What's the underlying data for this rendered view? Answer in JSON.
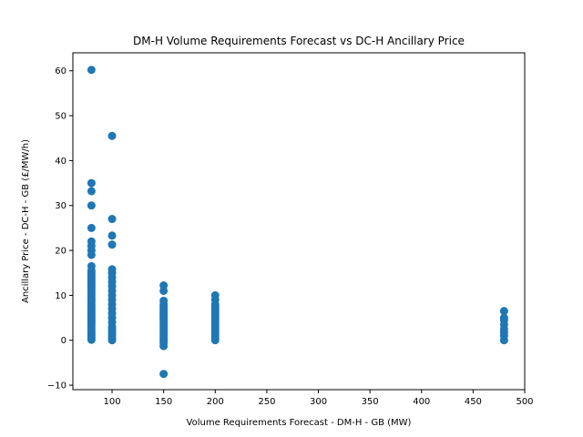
{
  "chart_data": {
    "type": "scatter",
    "title": "DM-H Volume Requirements Forecast vs DC-H Ancillary Price",
    "xlabel": "Volume Requirements Forecast - DM-H - GB (MW)",
    "ylabel": "Ancillary Price - DC-H - GB (£/MW/h)",
    "xlim": [
      62,
      500
    ],
    "ylim": [
      -11,
      64
    ],
    "xticks": [
      100,
      150,
      200,
      250,
      300,
      350,
      400,
      450,
      500
    ],
    "yticks": [
      -10,
      0,
      10,
      20,
      30,
      40,
      50,
      60
    ],
    "grid": false,
    "marker_color": "#1f77b4",
    "series": [
      {
        "points": [
          [
            80,
            60.2
          ],
          [
            80,
            35
          ],
          [
            80,
            33.2
          ],
          [
            80,
            30
          ],
          [
            80,
            25
          ],
          [
            80,
            22
          ],
          [
            80,
            21
          ],
          [
            80,
            20
          ],
          [
            80,
            19
          ],
          [
            80,
            16.5
          ],
          [
            80,
            15.5
          ],
          [
            80,
            15
          ],
          [
            80,
            14.5
          ],
          [
            80,
            14
          ],
          [
            80,
            13.5
          ],
          [
            80,
            13
          ],
          [
            80,
            12.5
          ],
          [
            80,
            12
          ],
          [
            80,
            11.5
          ],
          [
            80,
            11
          ],
          [
            80,
            10.5
          ],
          [
            80,
            10
          ],
          [
            80,
            9.5
          ],
          [
            80,
            9
          ],
          [
            80,
            8.5
          ],
          [
            80,
            8
          ],
          [
            80,
            7.5
          ],
          [
            80,
            7
          ],
          [
            80,
            6.5
          ],
          [
            80,
            6
          ],
          [
            80,
            5.5
          ],
          [
            80,
            5
          ],
          [
            80,
            4.5
          ],
          [
            80,
            4
          ],
          [
            80,
            3.5
          ],
          [
            80,
            3
          ],
          [
            80,
            2.5
          ],
          [
            80,
            2
          ],
          [
            80,
            1.5
          ],
          [
            80,
            1
          ],
          [
            80,
            0.5
          ],
          [
            80,
            0.1
          ],
          [
            100,
            45.5
          ],
          [
            100,
            27
          ],
          [
            100,
            23.3
          ],
          [
            100,
            21.3
          ],
          [
            100,
            15.8
          ],
          [
            100,
            15
          ],
          [
            100,
            14
          ],
          [
            100,
            13
          ],
          [
            100,
            12
          ],
          [
            100,
            11
          ],
          [
            100,
            10
          ],
          [
            100,
            9
          ],
          [
            100,
            8
          ],
          [
            100,
            7
          ],
          [
            100,
            6
          ],
          [
            100,
            5
          ],
          [
            100,
            4
          ],
          [
            100,
            3
          ],
          [
            100,
            2.5
          ],
          [
            100,
            2
          ],
          [
            100,
            1.5
          ],
          [
            100,
            1
          ],
          [
            100,
            0.5
          ],
          [
            100,
            0
          ],
          [
            150,
            12.2
          ],
          [
            150,
            11
          ],
          [
            150,
            8.8
          ],
          [
            150,
            8
          ],
          [
            150,
            7.5
          ],
          [
            150,
            7
          ],
          [
            150,
            6.5
          ],
          [
            150,
            6
          ],
          [
            150,
            5.5
          ],
          [
            150,
            5
          ],
          [
            150,
            4.5
          ],
          [
            150,
            4
          ],
          [
            150,
            3.5
          ],
          [
            150,
            3
          ],
          [
            150,
            2.5
          ],
          [
            150,
            2
          ],
          [
            150,
            1.5
          ],
          [
            150,
            1
          ],
          [
            150,
            0.5
          ],
          [
            150,
            0
          ],
          [
            150,
            -0.5
          ],
          [
            150,
            -1.3
          ],
          [
            150,
            -7.5
          ],
          [
            200,
            10
          ],
          [
            200,
            9
          ],
          [
            200,
            8
          ],
          [
            200,
            7.5
          ],
          [
            200,
            7
          ],
          [
            200,
            6.5
          ],
          [
            200,
            6
          ],
          [
            200,
            5.5
          ],
          [
            200,
            5
          ],
          [
            200,
            4.5
          ],
          [
            200,
            4
          ],
          [
            200,
            3.5
          ],
          [
            200,
            3
          ],
          [
            200,
            2.5
          ],
          [
            200,
            2
          ],
          [
            200,
            1.5
          ],
          [
            200,
            1
          ],
          [
            200,
            0.5
          ],
          [
            200,
            0
          ],
          [
            480,
            6.5
          ],
          [
            480,
            5
          ],
          [
            480,
            4.5
          ],
          [
            480,
            3.5
          ],
          [
            480,
            2.5
          ],
          [
            480,
            1.8
          ],
          [
            480,
            1
          ],
          [
            480,
            0
          ]
        ]
      }
    ]
  }
}
